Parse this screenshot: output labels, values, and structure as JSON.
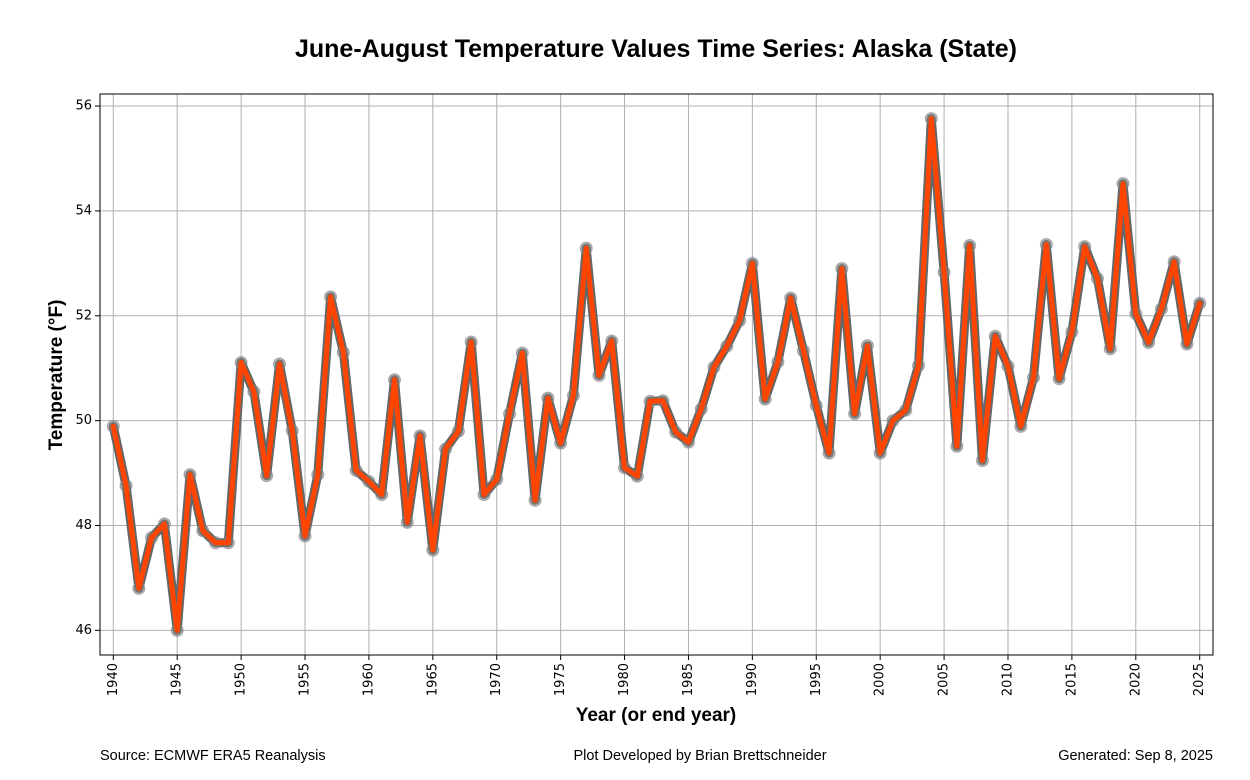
{
  "chart_data": {
    "type": "line",
    "title": "June-August Temperature Values Time Series: Alaska (State)",
    "xlabel": "Year (or end year)",
    "ylabel": "Temperature (°F)",
    "xlim": [
      1938.96,
      2026.04
    ],
    "ylim": [
      45.53,
      56.23
    ],
    "grid": true,
    "legend": null,
    "xticks": [
      1940,
      1945,
      1950,
      1955,
      1960,
      1965,
      1970,
      1975,
      1980,
      1985,
      1990,
      1995,
      2000,
      2005,
      2010,
      2015,
      2020,
      2025
    ],
    "xtick_labels": [
      "1940",
      "1945",
      "1950",
      "1955",
      "1960",
      "1965",
      "1970",
      "1975",
      "1980",
      "1985",
      "1990",
      "1995",
      "2000",
      "2005",
      "2010",
      "2015",
      "2020",
      "2025"
    ],
    "yticks": [
      46,
      48,
      50,
      52,
      54,
      56
    ],
    "ytick_labels": [
      "46",
      "48",
      "50",
      "52",
      "54",
      "56"
    ],
    "colors": {
      "line": "#ff4500",
      "line_outline": "#666666",
      "marker": "#808080",
      "grid": "#b0b0b0"
    },
    "series": [
      {
        "name": "June-August Temperature",
        "x": [
          1940,
          1941,
          1942,
          1943,
          1944,
          1945,
          1946,
          1947,
          1948,
          1949,
          1950,
          1951,
          1952,
          1953,
          1954,
          1955,
          1956,
          1957,
          1958,
          1959,
          1960,
          1961,
          1962,
          1963,
          1964,
          1965,
          1966,
          1967,
          1968,
          1969,
          1970,
          1971,
          1972,
          1973,
          1974,
          1975,
          1976,
          1977,
          1978,
          1979,
          1980,
          1981,
          1982,
          1983,
          1984,
          1985,
          1986,
          1987,
          1988,
          1989,
          1990,
          1991,
          1992,
          1993,
          1994,
          1995,
          1996,
          1997,
          1998,
          1999,
          2000,
          2001,
          2002,
          2003,
          2004,
          2005,
          2006,
          2007,
          2008,
          2009,
          2010,
          2011,
          2012,
          2013,
          2014,
          2015,
          2016,
          2017,
          2018,
          2019,
          2020,
          2021,
          2022,
          2023,
          2024,
          2025
        ],
        "values": [
          49.89,
          48.76,
          46.8,
          47.77,
          48.03,
          46.0,
          48.97,
          47.9,
          47.67,
          47.67,
          51.11,
          50.55,
          48.95,
          51.08,
          49.81,
          47.8,
          48.97,
          52.36,
          51.3,
          49.05,
          48.84,
          48.59,
          50.78,
          48.06,
          49.71,
          47.53,
          49.46,
          49.8,
          51.5,
          48.59,
          48.88,
          50.13,
          51.29,
          48.48,
          50.43,
          49.57,
          50.48,
          53.29,
          50.86,
          51.52,
          49.1,
          48.94,
          50.37,
          50.38,
          49.78,
          49.59,
          50.22,
          51.02,
          51.42,
          51.91,
          53.0,
          50.41,
          51.12,
          52.34,
          51.33,
          50.29,
          49.38,
          52.9,
          50.13,
          51.43,
          49.38,
          50.0,
          50.2,
          51.05,
          55.76,
          52.83,
          49.51,
          53.34,
          49.24,
          51.61,
          51.04,
          49.89,
          50.82,
          53.36,
          50.8,
          51.69,
          53.32,
          52.71,
          51.37,
          54.52,
          52.04,
          51.49,
          52.13,
          53.03,
          51.46,
          52.24
        ]
      }
    ]
  },
  "footer": {
    "source": "Source: ECMWF ERA5 Reanalysis",
    "credit": "Plot Developed by Brian Brettschneider",
    "generated": "Generated: Sep 8, 2025"
  }
}
